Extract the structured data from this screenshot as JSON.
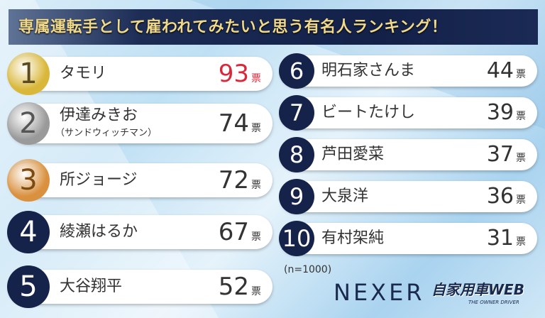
{
  "title": "専属運転手として雇われてみたいと思う有名人ランキング！",
  "chart_data": {
    "type": "table",
    "unit": "票",
    "sample": "(n=1000)",
    "rows": [
      {
        "rank": "1",
        "name": "タモリ",
        "votes": 93
      },
      {
        "rank": "2",
        "name": "伊達みきお",
        "sub": "（サンドウィッチマン）",
        "votes": 74
      },
      {
        "rank": "3",
        "name": "所ジョージ",
        "votes": 72
      },
      {
        "rank": "4",
        "name": "綾瀬はるか",
        "votes": 67
      },
      {
        "rank": "5",
        "name": "大谷翔平",
        "votes": 52
      },
      {
        "rank": "6",
        "name": "明石家さんま",
        "votes": 44
      },
      {
        "rank": "7",
        "name": "ビートたけし",
        "votes": 39
      },
      {
        "rank": "8",
        "name": "芦田愛菜",
        "votes": 37
      },
      {
        "rank": "9",
        "name": "大泉洋",
        "votes": 36
      },
      {
        "rank": "10",
        "name": "有村架純",
        "votes": 31
      }
    ]
  },
  "colors": {
    "gold": "#d9b73a",
    "silver": "#9a9a9a",
    "bronze": "#d9913f",
    "navy": "#15224a",
    "top_votes": "#d8283a"
  },
  "logo": {
    "nexer": "NEXER",
    "jikayosha": "自家用車WEB",
    "tagline": "THE OWNER DRIVER"
  }
}
